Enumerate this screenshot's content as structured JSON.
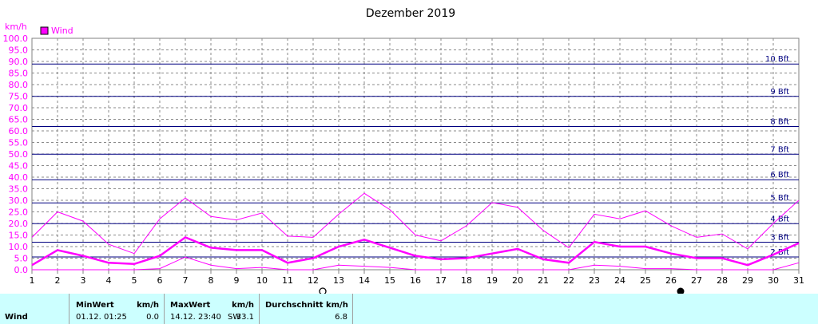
{
  "chart_data": {
    "type": "line",
    "title": "Dezember 2019",
    "ylabel": "km/h",
    "ylim": [
      0,
      100
    ],
    "xlim": [
      1,
      31
    ],
    "grid": true,
    "legend_position": "top-left",
    "y_ticks": [
      "0.0",
      "5.0",
      "10.0",
      "15.0",
      "20.0",
      "25.0",
      "30.0",
      "35.0",
      "40.0",
      "45.0",
      "50.0",
      "55.0",
      "60.0",
      "65.0",
      "70.0",
      "75.0",
      "80.0",
      "85.0",
      "90.0",
      "95.0",
      "100.0"
    ],
    "x_ticks": [
      "1",
      "2",
      "3",
      "4",
      "5",
      "6",
      "7",
      "8",
      "9",
      "10",
      "11",
      "12",
      "13",
      "14",
      "15",
      "16",
      "17",
      "18",
      "19",
      "20",
      "21",
      "22",
      "23",
      "24",
      "25",
      "26",
      "27",
      "28",
      "29",
      "30",
      "31"
    ],
    "beaufort": [
      {
        "label": "2 Bft",
        "value": 5.5
      },
      {
        "label": "3 Bft",
        "value": 11.9
      },
      {
        "label": "4 Bft",
        "value": 19.9
      },
      {
        "label": "5 Bft",
        "value": 28.9
      },
      {
        "label": "6 Bft",
        "value": 38.9
      },
      {
        "label": "7 Bft",
        "value": 49.9
      },
      {
        "label": "8 Bft",
        "value": 61.9
      },
      {
        "label": "9 Bft",
        "value": 74.9
      },
      {
        "label": "10 Bft",
        "value": 88.9
      }
    ],
    "legend_label": "Wind",
    "x": [
      1,
      2,
      3,
      4,
      5,
      6,
      7,
      8,
      9,
      10,
      11,
      12,
      13,
      14,
      15,
      16,
      17,
      18,
      19,
      20,
      21,
      22,
      23,
      24,
      25,
      26,
      27,
      28,
      29,
      30,
      31
    ],
    "series": [
      {
        "name": "Wind",
        "role": "mean",
        "color": "#ff00ff",
        "values": [
          2,
          8.5,
          6,
          3,
          2.5,
          6,
          14,
          9.5,
          8.5,
          8.5,
          3,
          5,
          10,
          13,
          9.5,
          6,
          4.5,
          5,
          7,
          9,
          4.5,
          3,
          12,
          10,
          10,
          7,
          5,
          5,
          2,
          6.5,
          11.5
        ]
      },
      {
        "role": "max",
        "color": "#ff00ff",
        "values": [
          14,
          25,
          21,
          11,
          7,
          22,
          31,
          23,
          21.5,
          24.5,
          14.5,
          14,
          24,
          33,
          26,
          15,
          12.5,
          19,
          29,
          27,
          17,
          9.5,
          24,
          22,
          25.5,
          19,
          14,
          15.5,
          9,
          20,
          30
        ]
      },
      {
        "role": "min",
        "color": "#ff00ff",
        "values": [
          0,
          0,
          0,
          0,
          0,
          0.5,
          5.5,
          2,
          0.5,
          1,
          0,
          0,
          2,
          1.5,
          1,
          0,
          0,
          0,
          0,
          0,
          0,
          0,
          2,
          1.5,
          0.5,
          0.5,
          0,
          0,
          0,
          0,
          3
        ]
      }
    ],
    "moon_markers": [
      {
        "day": 12,
        "phase": "full"
      },
      {
        "day": 26,
        "phase": "new"
      }
    ]
  },
  "stats": {
    "series_label": "Wind",
    "min_header": "MinWert",
    "min_unit": "km/h",
    "min_time": "01.12.  01:25",
    "min_value": "0.0",
    "max_header": "MaxWert",
    "max_unit": "km/h",
    "max_time": "14.12.  23:40",
    "max_dir": "SW",
    "max_value": "33.1",
    "avg_header": "Durchschnitt km/h",
    "avg_value": "6.8"
  }
}
